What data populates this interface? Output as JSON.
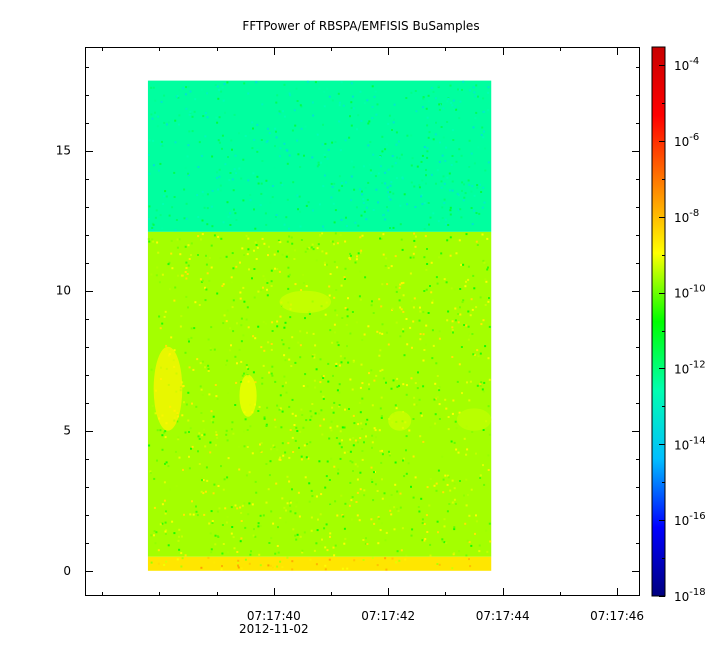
{
  "chart_data": {
    "type": "heatmap",
    "title": "FFTPower of RBSPA/EMFISIS  BuSamples",
    "xlabel": "",
    "ylabel": "",
    "x_axis": {
      "type": "time",
      "ticks": [
        "07:17:40",
        "07:17:42",
        "07:17:44",
        "07:17:46"
      ],
      "tick_seconds": [
        40,
        42,
        44,
        46
      ],
      "range_seconds": [
        36.7,
        46.4
      ],
      "date_label": "2012-11-02",
      "data_range_seconds": [
        37.8,
        43.8
      ]
    },
    "y_axis": {
      "ticks": [
        "0",
        "5",
        "10",
        "15"
      ],
      "tick_values": [
        0,
        5,
        10,
        15
      ],
      "range": [
        -0.9,
        18.7
      ],
      "data_range": [
        0,
        17.5
      ]
    },
    "colorbar": {
      "scale": "log",
      "range": [
        1e-18,
        0.0003
      ],
      "exponent_labels": [
        "-18",
        "-16",
        "-14",
        "-12",
        "-10",
        "-8",
        "-6",
        "-4"
      ],
      "tick_exponents": [
        -18,
        -16,
        -14,
        -12,
        -10,
        -8,
        -6,
        -4
      ],
      "base_label": "10",
      "colors": [
        "#00007f",
        "#0000ff",
        "#00bfff",
        "#00ffb0",
        "#00ff00",
        "#ffff00",
        "#ff8000",
        "#ff0000",
        "#c80000"
      ]
    },
    "regions": [
      {
        "y_range": [
          12.1,
          17.5
        ],
        "log_power": -12.4
      },
      {
        "y_range": [
          0.5,
          12.1
        ],
        "log_power": -9.6
      },
      {
        "y_range": [
          0,
          0.5
        ],
        "log_power": -8.6
      }
    ],
    "features": [
      {
        "t_range": [
          37.9,
          38.4
        ],
        "y_range": [
          5.0,
          8.0
        ],
        "log_power": -8.8
      },
      {
        "t_range": [
          39.4,
          39.7
        ],
        "y_range": [
          5.5,
          7.0
        ],
        "log_power": -9.0
      },
      {
        "t_range": [
          40.1,
          41.0
        ],
        "y_range": [
          9.2,
          10.0
        ],
        "log_power": -9.3
      },
      {
        "t_range": [
          42.0,
          42.4
        ],
        "y_range": [
          5.0,
          5.7
        ],
        "log_power": -9.3
      },
      {
        "t_range": [
          43.2,
          43.8
        ],
        "y_range": [
          5.0,
          5.8
        ],
        "log_power": -9.4
      }
    ]
  }
}
